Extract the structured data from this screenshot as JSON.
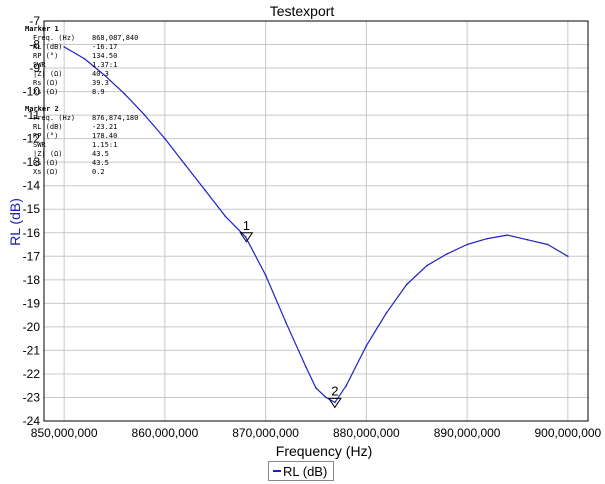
{
  "chart_data": {
    "type": "line",
    "title": "Testexport",
    "xlabel": "Frequency (Hz)",
    "ylabel": "RL (dB)",
    "xlim": [
      848000000,
      902000000
    ],
    "ylim": [
      -24,
      -7
    ],
    "xticks": [
      850000000,
      860000000,
      870000000,
      880000000,
      890000000,
      900000000
    ],
    "xtick_labels": [
      "850,000,000",
      "860,000,000",
      "870,000,000",
      "880,000,000",
      "890,000,000",
      "900,000,000"
    ],
    "yticks": [
      -24,
      -23,
      -22,
      -21,
      -20,
      -19,
      -18,
      -17,
      -16,
      -15,
      -14,
      -13,
      -12,
      -11,
      -10,
      -9,
      -8,
      -7
    ],
    "grid": true,
    "legend_position": "bottom-center",
    "series": [
      {
        "name": "RL (dB)",
        "color": "#2020c8",
        "x": [
          850000000,
          852000000,
          854000000,
          856000000,
          858000000,
          860000000,
          862000000,
          864000000,
          866000000,
          868000000,
          870000000,
          872000000,
          874000000,
          875000000,
          876000000,
          876874180,
          878000000,
          880000000,
          882000000,
          884000000,
          886000000,
          888000000,
          890000000,
          892000000,
          894000000,
          896000000,
          898000000,
          900000000
        ],
        "y": [
          -8.1,
          -8.6,
          -9.3,
          -10.1,
          -11.0,
          -12.0,
          -13.1,
          -14.2,
          -15.3,
          -16.17,
          -17.8,
          -19.8,
          -21.7,
          -22.6,
          -23.0,
          -23.21,
          -22.5,
          -20.8,
          -19.4,
          -18.2,
          -17.4,
          -16.9,
          -16.5,
          -16.25,
          -16.1,
          -16.3,
          -16.5,
          -17.0
        ]
      }
    ],
    "markers": [
      {
        "label": "1",
        "x": 868087840,
        "y": -16.17,
        "header": "Marker 1",
        "rows": [
          {
            "k": "Freq. (Hz)",
            "v": "868,087,840"
          },
          {
            "k": "RL (dB)",
            "v": "-16.17"
          },
          {
            "k": "RP (°)",
            "v": "134.50"
          },
          {
            "k": "SWR",
            "v": "1.37:1"
          },
          {
            "k": "|Z| (Ω)",
            "v": "40.3"
          },
          {
            "k": "Rs (Ω)",
            "v": "39.3"
          },
          {
            "k": "Xs (Ω)",
            "v": "8.9"
          }
        ]
      },
      {
        "label": "2",
        "x": 876874180,
        "y": -23.21,
        "header": "Marker 2",
        "rows": [
          {
            "k": "Freq. (Hz)",
            "v": "876,874,180"
          },
          {
            "k": "RL (dB)",
            "v": "-23.21"
          },
          {
            "k": "RP (°)",
            "v": "178.40"
          },
          {
            "k": "SWR",
            "v": "1.15:1"
          },
          {
            "k": "|Z| (Ω)",
            "v": "43.5"
          },
          {
            "k": "Rs (Ω)",
            "v": "43.5"
          },
          {
            "k": "Xs (Ω)",
            "v": "0.2"
          }
        ]
      }
    ]
  }
}
